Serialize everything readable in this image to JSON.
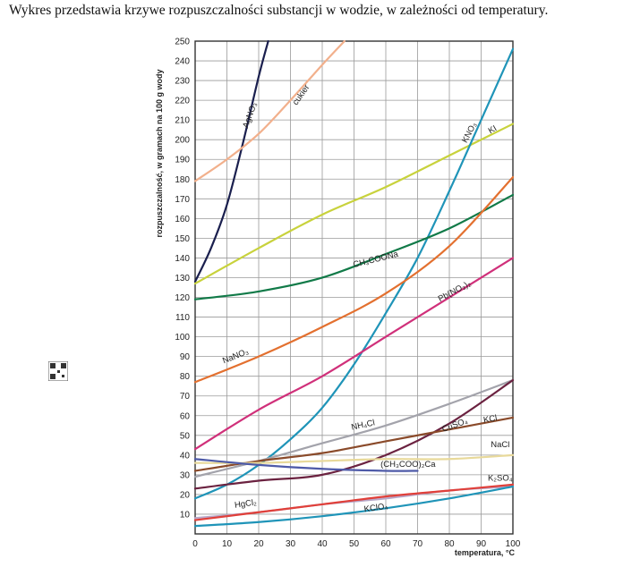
{
  "heading": "Wykres przedstawia krzywe rozpuszczalności substancji w wodzie, w zależności od temperatury.",
  "chart_data": {
    "type": "line",
    "title": "",
    "xlabel": "temperatura, °C",
    "ylabel": "rozpuszczalność, w gramach na 100 g wody",
    "xlim": [
      0,
      100
    ],
    "ylim": [
      0,
      250
    ],
    "x_ticks": [
      "0",
      "10",
      "20",
      "30",
      "40",
      "50",
      "60",
      "70",
      "80",
      "90",
      "100"
    ],
    "y_ticks": [
      "10",
      "20",
      "30",
      "40",
      "50",
      "60",
      "70",
      "80",
      "90",
      "100",
      "110",
      "120",
      "130",
      "140",
      "150",
      "160",
      "170",
      "180",
      "190",
      "200",
      "210",
      "220",
      "230",
      "240",
      "250"
    ],
    "grid": true,
    "series": [
      {
        "name": "AgNO3",
        "label": "AgNO₃",
        "color": "#1a1f4e",
        "x": [
          0,
          5,
          10,
          15,
          20,
          23
        ],
        "y": [
          128,
          145,
          167,
          198,
          232,
          250
        ]
      },
      {
        "name": "cukier",
        "label": "cukier",
        "color": "#f2b08c",
        "x": [
          0,
          10,
          20,
          30,
          40,
          47
        ],
        "y": [
          179,
          190,
          203,
          220,
          238,
          250
        ]
      },
      {
        "name": "KI",
        "label": "KI",
        "color": "#c8d23c",
        "x": [
          0,
          20,
          40,
          60,
          80,
          100
        ],
        "y": [
          127,
          145,
          162,
          176,
          192,
          208
        ]
      },
      {
        "name": "KNO3",
        "label": "KNO₃",
        "color": "#1f94b8",
        "x": [
          0,
          10,
          20,
          30,
          40,
          50,
          60,
          70,
          80,
          90,
          100
        ],
        "y": [
          18,
          25,
          35,
          48,
          64,
          86,
          112,
          140,
          174,
          210,
          246
        ]
      },
      {
        "name": "CH3COONa",
        "label": "CH₃COONa",
        "color": "#117a48",
        "x": [
          0,
          20,
          40,
          60,
          80,
          100
        ],
        "y": [
          119,
          123,
          130,
          142,
          155,
          172
        ]
      },
      {
        "name": "NaNO3",
        "label": "NaNO₃",
        "color": "#e3702f",
        "x": [
          0,
          20,
          40,
          60,
          80,
          100
        ],
        "y": [
          77,
          90,
          105,
          122,
          146,
          181
        ]
      },
      {
        "name": "Pb(NO3)2",
        "label": "Pb(NO₃)₂",
        "color": "#d0307a",
        "x": [
          0,
          20,
          40,
          60,
          80,
          100
        ],
        "y": [
          43,
          63,
          80,
          100,
          120,
          140
        ]
      },
      {
        "name": "NH4Cl",
        "label": "NH₄Cl",
        "color": "#a3a3ab",
        "x": [
          0,
          20,
          40,
          60,
          80,
          100
        ],
        "y": [
          29,
          37,
          46,
          55,
          66,
          78
        ]
      },
      {
        "name": "CuSO4",
        "label": "CuSO₄",
        "color": "#6b2240",
        "x": [
          0,
          20,
          40,
          60,
          80,
          100
        ],
        "y": [
          23,
          27,
          30,
          40,
          56,
          78
        ]
      },
      {
        "name": "KCl",
        "label": "KCl",
        "color": "#8a4a2a",
        "x": [
          0,
          20,
          40,
          60,
          80,
          100
        ],
        "y": [
          32,
          37,
          41,
          47,
          53,
          59
        ]
      },
      {
        "name": "NaCl",
        "label": "NaCl",
        "color": "#e8d99a",
        "x": [
          0,
          20,
          40,
          60,
          80,
          100
        ],
        "y": [
          36,
          36,
          37,
          38,
          38,
          40
        ]
      },
      {
        "name": "(CH3COO)2Ca",
        "label": "(CH₃COO)₂Ca",
        "color": "#4e5aa8",
        "x": [
          0,
          20,
          40,
          60,
          70
        ],
        "y": [
          38,
          35,
          33,
          32,
          32
        ]
      },
      {
        "name": "K2SO4",
        "label": "K₂SO₄",
        "color": "#b8a7c8",
        "x": [
          0,
          20,
          40,
          60,
          80,
          100
        ],
        "y": [
          8,
          11,
          15,
          18,
          22,
          24
        ]
      },
      {
        "name": "HgCl2",
        "label": "HgCl₂",
        "color": "#e0403a",
        "x": [
          0,
          20,
          40,
          60,
          80,
          100
        ],
        "y": [
          7,
          11,
          15,
          19,
          22,
          25
        ]
      },
      {
        "name": "KClO4",
        "label": "KClO₄",
        "color": "#1f94b8",
        "x": [
          0,
          20,
          40,
          60,
          80,
          100
        ],
        "y": [
          4,
          6,
          9,
          13,
          18,
          24
        ]
      }
    ]
  }
}
